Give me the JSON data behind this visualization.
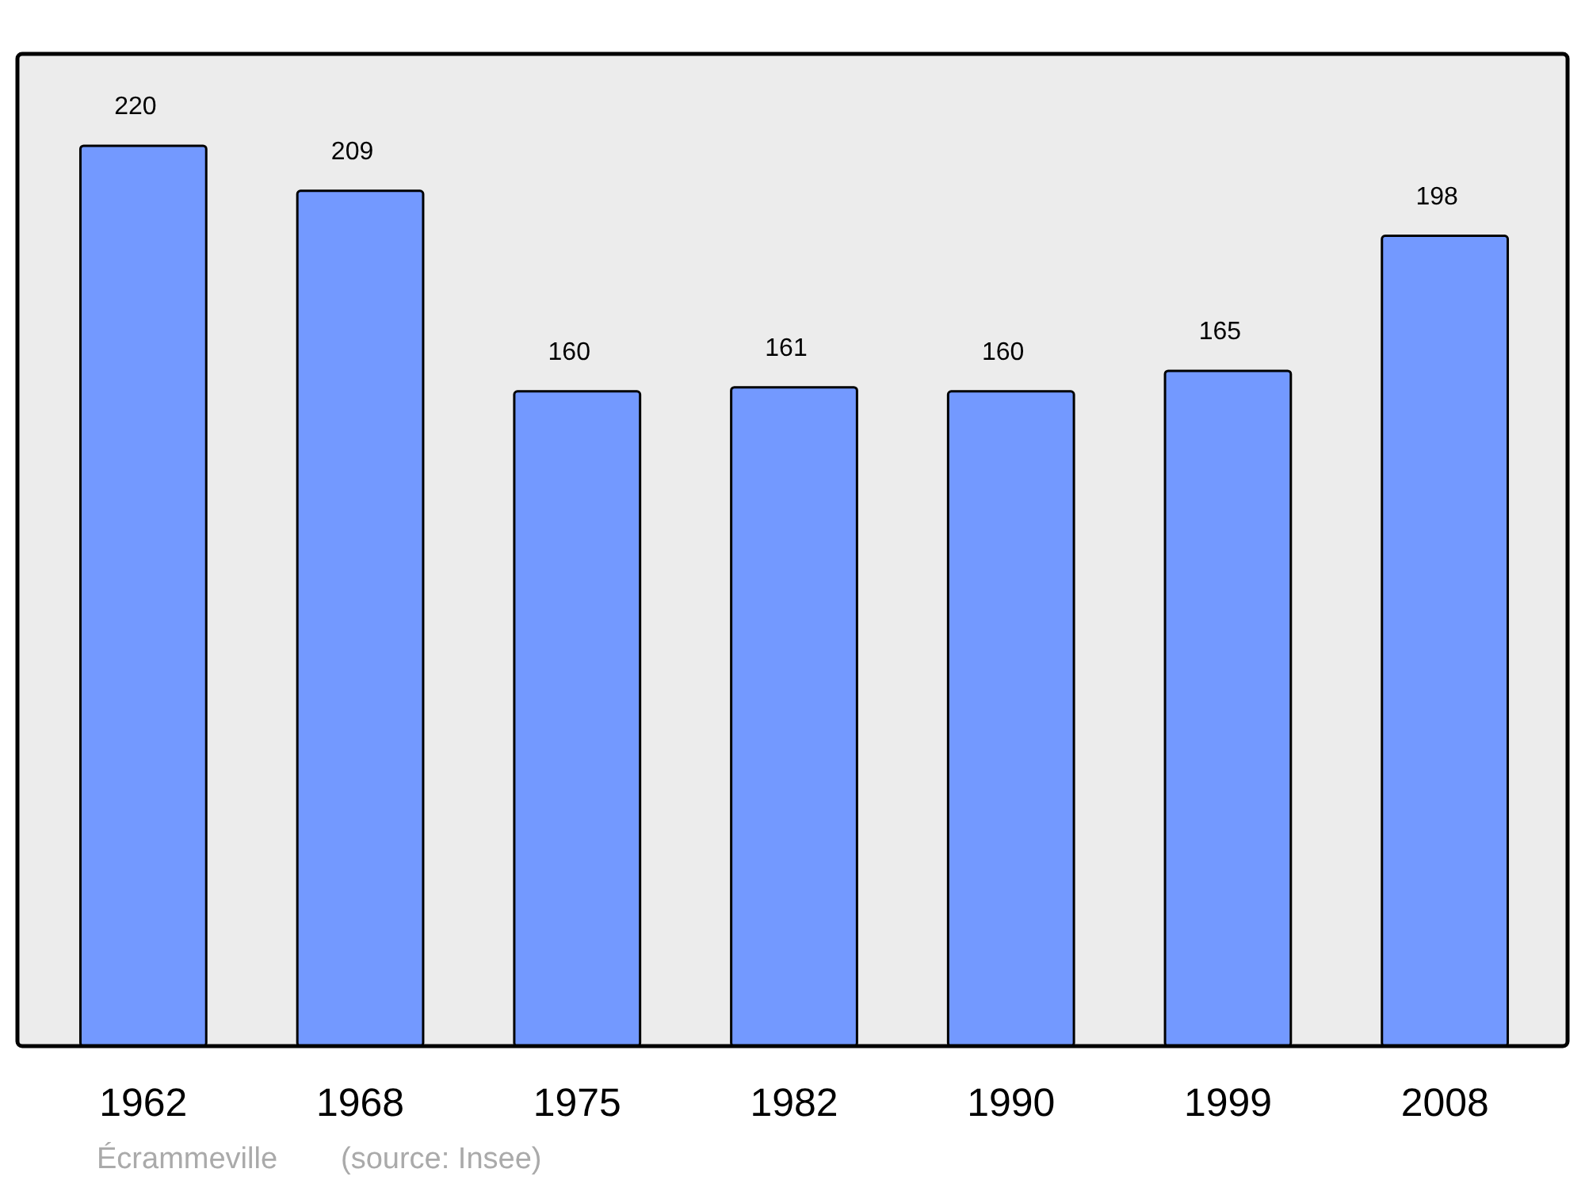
{
  "chart_data": {
    "type": "bar",
    "relative": false,
    "categories": [
      "1962",
      "1968",
      "1975",
      "1982",
      "1990",
      "1999",
      "2008"
    ],
    "values": [
      220,
      209,
      160,
      161,
      160,
      165,
      198
    ],
    "color": "#7399ff",
    "data_labels": true,
    "annotations": [
      "Écrammeville",
      "(source: Insee)"
    ]
  }
}
